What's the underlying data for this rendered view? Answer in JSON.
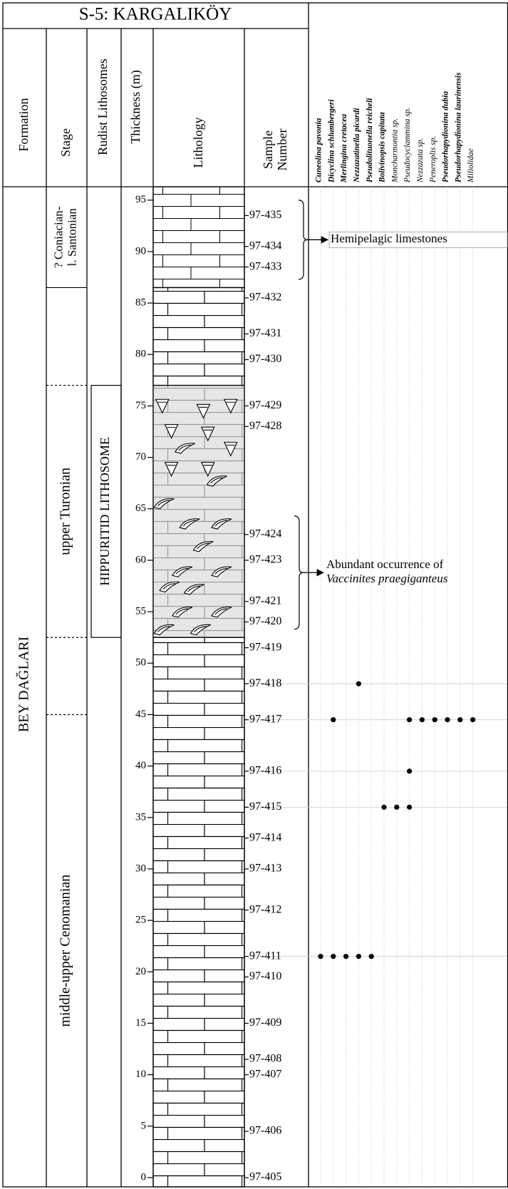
{
  "title": "S-5: KARGALIKÖY",
  "headers": {
    "formation": "Formation",
    "stage": "Stage",
    "rudist": "Rudist Lithosomes",
    "thickness": "Thickness (m)",
    "lithology": "Lithology",
    "sample": [
      "Sample",
      "Number"
    ]
  },
  "formation": "BEY DAĞLARI",
  "thickness": {
    "ylim": [
      -0.9,
      96.3
    ],
    "yticks": [
      0,
      5,
      10,
      15,
      20,
      25,
      30,
      35,
      40,
      45,
      50,
      55,
      60,
      65,
      70,
      75,
      80,
      85,
      90,
      95
    ]
  },
  "stages": [
    {
      "label": [
        "? Coniacian-",
        "l. Santonian"
      ],
      "range": [
        86.5,
        96.3
      ]
    },
    {
      "label": [
        "upper Turonian"
      ],
      "range": [
        52.5,
        77
      ]
    },
    {
      "label": [
        "middle-upper Cenomanian"
      ],
      "range": [
        -0.9,
        45
      ]
    }
  ],
  "stage_boundaries": [
    {
      "at": 86.5,
      "style": "solid"
    },
    {
      "at": 77,
      "style": "dashed"
    },
    {
      "at": 52.5,
      "style": "dashed"
    },
    {
      "at": 45,
      "style": "dashed"
    }
  ],
  "lithosome": {
    "label": "HIPPURITID LITHOSOME",
    "range": [
      52.5,
      77
    ]
  },
  "lithology": [
    {
      "range": [
        86.5,
        96.3
      ],
      "kind": "hemipelagic"
    },
    {
      "range": [
        77,
        86.5
      ],
      "kind": "limestone"
    },
    {
      "range": [
        52.5,
        77
      ],
      "kind": "rudist"
    },
    {
      "range": [
        -0.9,
        52.5
      ],
      "kind": "limestone"
    }
  ],
  "samples": [
    {
      "label": "97-435",
      "height": 93.5
    },
    {
      "label": "97-434",
      "height": 90.5
    },
    {
      "label": "97-433",
      "height": 88.5
    },
    {
      "label": "97-432",
      "height": 85.5
    },
    {
      "label": "97-431",
      "height": 82
    },
    {
      "label": "97-430",
      "height": 79.5
    },
    {
      "label": "97-429",
      "height": 75
    },
    {
      "label": "97-428",
      "height": 73
    },
    {
      "label": "97-424",
      "height": 62.5
    },
    {
      "label": "97-423",
      "height": 60
    },
    {
      "label": "97-421",
      "height": 56
    },
    {
      "label": "97-420",
      "height": 54
    },
    {
      "label": "97-419",
      "height": 51.5
    },
    {
      "label": "97-418",
      "height": 48
    },
    {
      "label": "97-417",
      "height": 44.5
    },
    {
      "label": "97-416",
      "height": 39.5
    },
    {
      "label": "97-415",
      "height": 36
    },
    {
      "label": "97-414",
      "height": 33
    },
    {
      "label": "97-413",
      "height": 30
    },
    {
      "label": "97-412",
      "height": 26
    },
    {
      "label": "97-411",
      "height": 21.5
    },
    {
      "label": "97-410",
      "height": 19.5
    },
    {
      "label": "97-409",
      "height": 15
    },
    {
      "label": "97-408",
      "height": 11.5
    },
    {
      "label": "97-407",
      "height": 10
    },
    {
      "label": "97-406",
      "height": 4.5
    },
    {
      "label": "97-405",
      "height": 0
    }
  ],
  "species": [
    {
      "name": "Cuneolina pavonia",
      "bold": true,
      "occurrences": [
        "97-411"
      ]
    },
    {
      "name": "Dicyclina schlumbergeri",
      "bold": true,
      "occurrences": [
        "97-417",
        "97-411"
      ]
    },
    {
      "name": "Merlingina cretacea",
      "bold": true,
      "occurrences": [
        "97-411"
      ]
    },
    {
      "name": "Nezzazatinella picardi",
      "bold": true,
      "occurrences": [
        "97-418",
        "97-411"
      ]
    },
    {
      "name": "Pseudolituonella reicheli",
      "bold": true,
      "occurrences": [
        "97-411"
      ]
    },
    {
      "name": "Bolivinopsis capitata",
      "bold": true,
      "occurrences": [
        "97-415"
      ]
    },
    {
      "name": "Moncharmontia sp.",
      "bold": false,
      "occurrences": [
        "97-415"
      ]
    },
    {
      "name": "Pseudocyclammina sp.",
      "bold": false,
      "occurrences": [
        "97-417",
        "97-416",
        "97-415"
      ]
    },
    {
      "name": "Nezzazata sp.",
      "bold": false,
      "occurrences": [
        "97-417"
      ]
    },
    {
      "name": "Peneroplis sp.",
      "bold": false,
      "occurrences": [
        "97-417"
      ]
    },
    {
      "name": "Pseudorhapydionina dubia",
      "bold": true,
      "occurrences": [
        "97-417"
      ]
    },
    {
      "name": "Pseudorhapydionina laurinensis",
      "bold": true,
      "occurrences": [
        "97-417"
      ]
    },
    {
      "name": "Miliolidae",
      "bold": false,
      "occurrences": [
        "97-417"
      ]
    }
  ],
  "annotations": [
    {
      "lines": [
        "Hemipelagic limestones"
      ],
      "italic": [
        false
      ],
      "boxed": true,
      "range": [
        87.3,
        95
      ]
    },
    {
      "lines": [
        "Abundant occurrence of",
        "Vaccinites praegiganteus"
      ],
      "italic": [
        false,
        true
      ],
      "boxed": false,
      "range": [
        53.3,
        64.3
      ]
    }
  ]
}
